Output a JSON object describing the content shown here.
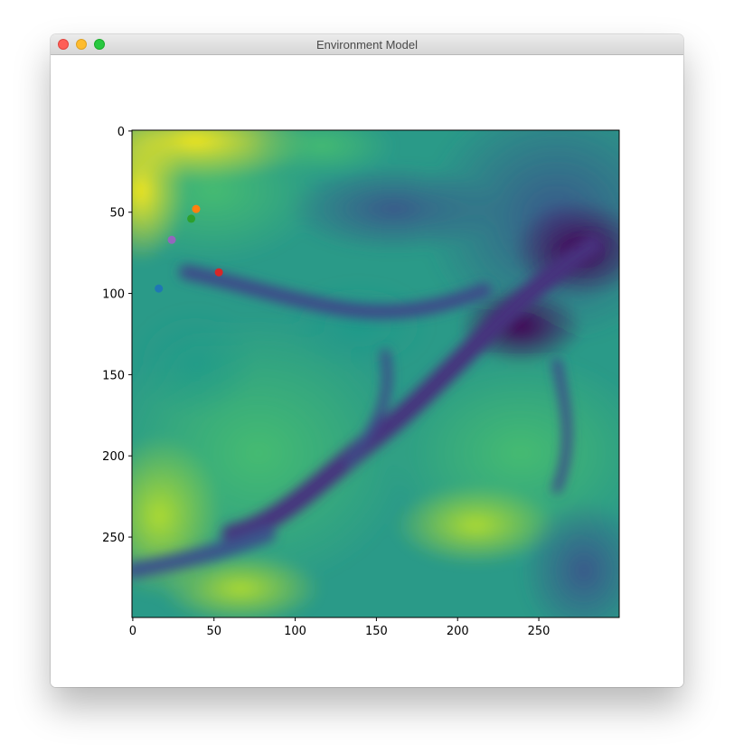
{
  "window": {
    "title": "Environment Model"
  },
  "chart_data": {
    "type": "heatmap",
    "title": "",
    "xlabel": "",
    "ylabel": "",
    "colormap": "viridis",
    "xlim": [
      0,
      299
    ],
    "ylim": [
      299,
      0
    ],
    "x_ticks": [
      0,
      50,
      100,
      150,
      200,
      250
    ],
    "y_ticks": [
      0,
      50,
      100,
      150,
      200,
      250
    ],
    "points": [
      {
        "x": 16,
        "y": 97,
        "color": "#1f77b4"
      },
      {
        "x": 39,
        "y": 48,
        "color": "#ff7f0e"
      },
      {
        "x": 36,
        "y": 54,
        "color": "#2ca02c"
      },
      {
        "x": 53,
        "y": 87,
        "color": "#d62728"
      },
      {
        "x": 24,
        "y": 67,
        "color": "#9467bd"
      }
    ]
  }
}
